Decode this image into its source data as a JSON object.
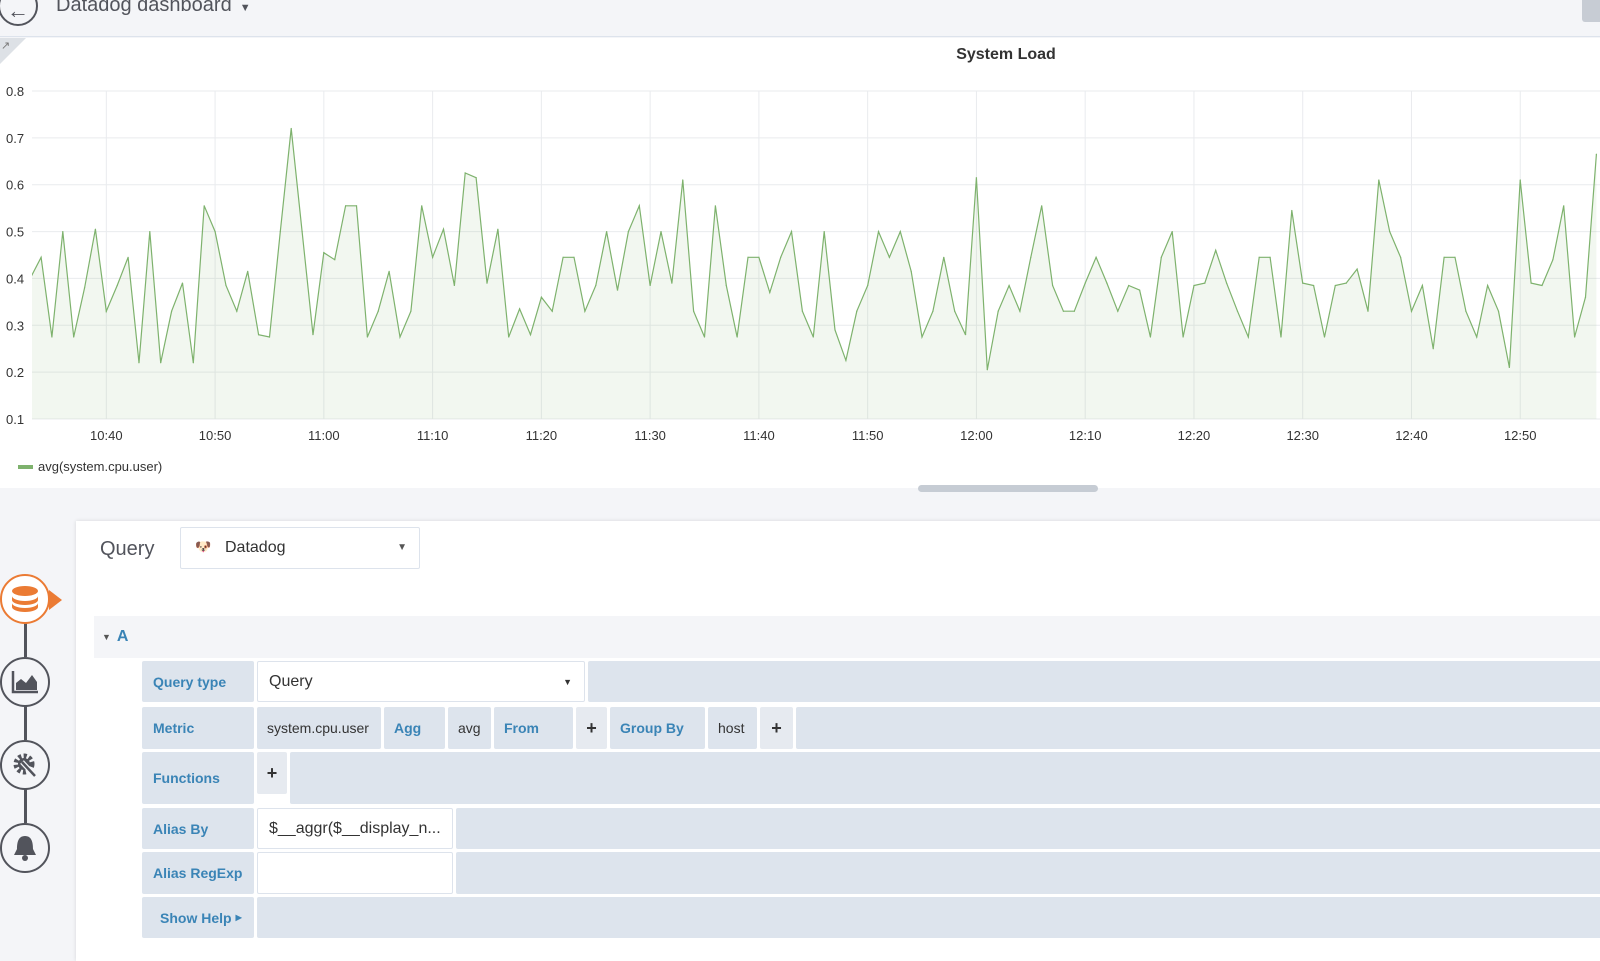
{
  "header": {
    "title": "Datadog dashboard"
  },
  "panel": {
    "title": "System Load",
    "legend": "avg(system.cpu.user)"
  },
  "colors": {
    "series": "#7eb26d",
    "accent": "#eb7b34",
    "label": "#3a84b6"
  },
  "editor": {
    "heading": "Query",
    "datasource": "Datadog",
    "query_ref": "A",
    "rows": {
      "query_type": {
        "label": "Query type",
        "value": "Query"
      },
      "metric": {
        "label": "Metric",
        "value": "system.cpu.user",
        "agg_label": "Agg",
        "agg_value": "avg",
        "from_label": "From",
        "group_label": "Group By",
        "group_value": "host"
      },
      "functions": {
        "label": "Functions"
      },
      "alias_by": {
        "label": "Alias By",
        "value": "$__aggr($__display_n..."
      },
      "alias_regexp": {
        "label": "Alias RegExp",
        "value": ""
      },
      "show_help": {
        "label": "Show Help"
      }
    }
  },
  "sidebar": {
    "steps": [
      {
        "icon": "database-icon",
        "active": true
      },
      {
        "icon": "chart-area-icon"
      },
      {
        "icon": "settings-wrench-icon"
      },
      {
        "icon": "bell-icon"
      }
    ]
  },
  "chart_data": {
    "type": "area",
    "title": "System Load",
    "xlim": [
      "10:33:10",
      "12:57:20"
    ],
    "ylim": [
      0.1,
      0.8
    ],
    "yticks": [
      "0.1",
      "0.2",
      "0.3",
      "0.4",
      "0.5",
      "0.6",
      "0.7",
      "0.8"
    ],
    "xticks": [
      "10:40",
      "10:50",
      "11:00",
      "11:10",
      "11:20",
      "11:30",
      "11:40",
      "11:50",
      "12:00",
      "12:10",
      "12:20",
      "12:30",
      "12:40",
      "12:50"
    ],
    "grid": true,
    "legend": "bottom-left",
    "series": [
      {
        "name": "avg(system.cpu.user)",
        "start": "10:33",
        "interval_min": 1,
        "values": [
          0.4,
          0.445,
          0.275,
          0.5,
          0.275,
          0.38,
          0.505,
          0.33,
          0.385,
          0.445,
          0.22,
          0.5,
          0.22,
          0.33,
          0.39,
          0.22,
          0.555,
          0.5,
          0.385,
          0.33,
          0.415,
          0.28,
          0.275,
          0.5,
          0.72,
          0.5,
          0.28,
          0.455,
          0.44,
          0.555,
          0.555,
          0.275,
          0.33,
          0.415,
          0.275,
          0.33,
          0.555,
          0.445,
          0.505,
          0.385,
          0.625,
          0.615,
          0.39,
          0.505,
          0.275,
          0.335,
          0.28,
          0.36,
          0.33,
          0.445,
          0.445,
          0.33,
          0.385,
          0.5,
          0.375,
          0.5,
          0.555,
          0.385,
          0.5,
          0.39,
          0.61,
          0.33,
          0.275,
          0.555,
          0.385,
          0.275,
          0.445,
          0.445,
          0.37,
          0.445,
          0.5,
          0.33,
          0.275,
          0.5,
          0.29,
          0.225,
          0.33,
          0.385,
          0.5,
          0.445,
          0.5,
          0.415,
          0.275,
          0.33,
          0.445,
          0.33,
          0.28,
          0.615,
          0.205,
          0.33,
          0.385,
          0.33,
          0.445,
          0.555,
          0.385,
          0.33,
          0.33,
          0.39,
          0.445,
          0.39,
          0.33,
          0.385,
          0.375,
          0.275,
          0.445,
          0.5,
          0.275,
          0.385,
          0.39,
          0.46,
          0.39,
          0.33,
          0.275,
          0.445,
          0.445,
          0.275,
          0.545,
          0.39,
          0.385,
          0.275,
          0.385,
          0.39,
          0.42,
          0.33,
          0.61,
          0.5,
          0.445,
          0.33,
          0.385,
          0.25,
          0.445,
          0.445,
          0.33,
          0.275,
          0.385,
          0.33,
          0.21,
          0.61,
          0.39,
          0.385,
          0.44,
          0.555,
          0.275,
          0.36,
          0.665
        ]
      }
    ]
  }
}
